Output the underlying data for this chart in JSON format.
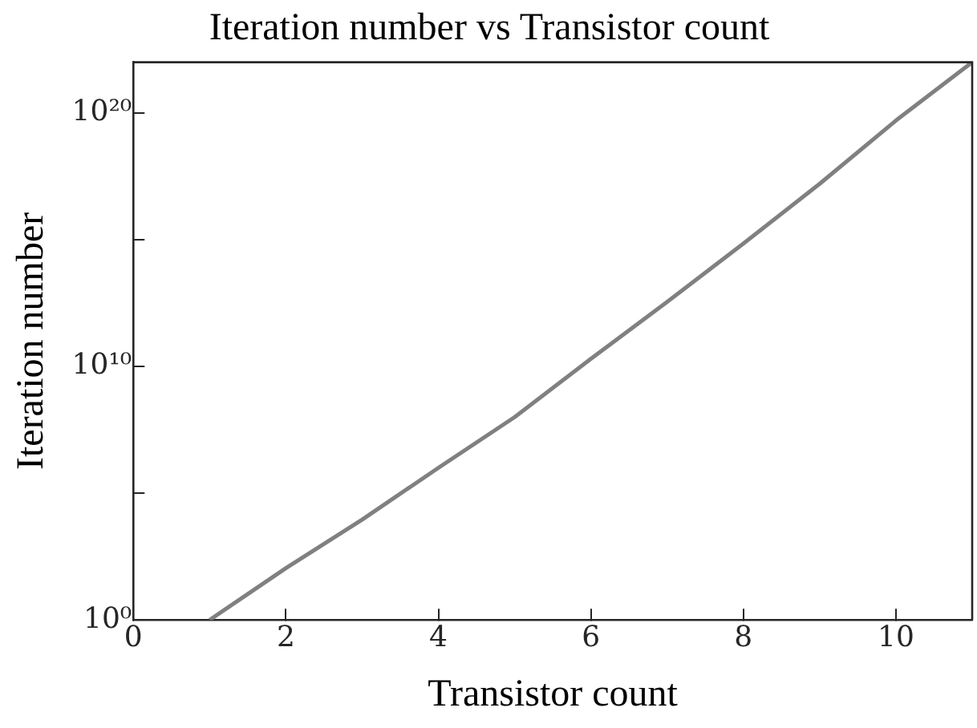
{
  "chart_data": {
    "type": "line",
    "title": "Iteration number vs Transistor count",
    "xlabel": "Transistor count",
    "ylabel": "Iteration number",
    "x": [
      1,
      2,
      3,
      4,
      5,
      6,
      7,
      8,
      9,
      10,
      11
    ],
    "series": [
      {
        "color": "#808080",
        "values": [
          1,
          110.0,
          9000.0,
          1000000.0,
          100000000.0,
          20000000000.0,
          3500000000000.0,
          700000000000000.0,
          1.6e+17,
          5e+19,
          1e+22
        ]
      }
    ],
    "log": "y",
    "xlim": [
      0,
      11
    ],
    "xticks": [
      0,
      2,
      4,
      6,
      8,
      10
    ],
    "ylim": [
      1,
      1e+22
    ],
    "yticks": [
      {
        "value": 1,
        "label": "10⁰"
      },
      {
        "value": 100000.0,
        "label": null
      },
      {
        "value": 10000000000.0,
        "label": "10¹⁰"
      },
      {
        "value": 1000000000000000.0,
        "label": null
      },
      {
        "value": 1e+20,
        "label": "10²⁰"
      }
    ],
    "grid": false,
    "legend": false,
    "marker": "none",
    "line_style": "solid"
  }
}
